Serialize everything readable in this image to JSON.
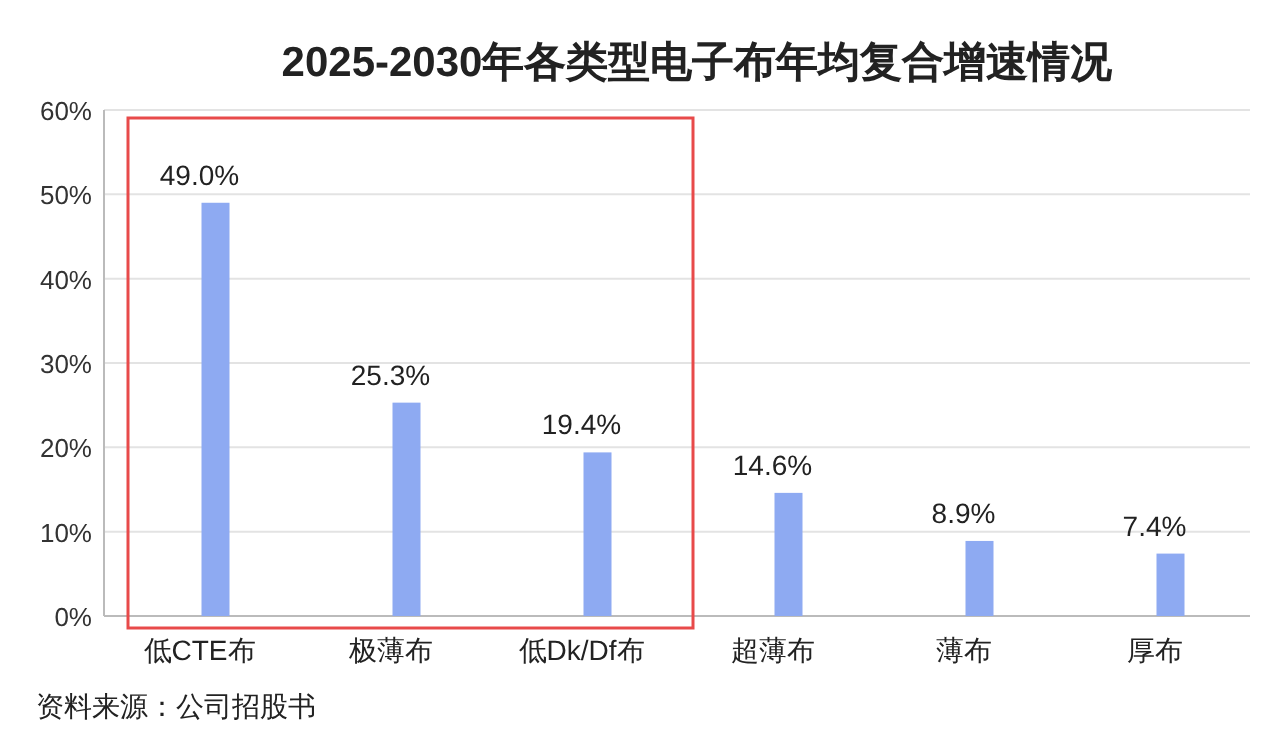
{
  "chart_data": {
    "type": "bar",
    "title": "2025-2030年各类型电子布年均复合增速情况",
    "categories": [
      "低CTE布",
      "极薄布",
      "低Dk/Df布",
      "超薄布",
      "薄布",
      "厚布"
    ],
    "values": [
      49.0,
      25.3,
      19.4,
      14.6,
      8.9,
      7.4
    ],
    "value_labels": [
      "49.0%",
      "25.3%",
      "19.4%",
      "14.6%",
      "8.9%",
      "7.4%"
    ],
    "color": "#8eaaf2",
    "ylim": [
      0,
      60
    ],
    "yticks": [
      {
        "value": 0,
        "label": "0%"
      },
      {
        "value": 10,
        "label": "10%"
      },
      {
        "value": 20,
        "label": "20%"
      },
      {
        "value": 30,
        "label": "30%"
      },
      {
        "value": 40,
        "label": "40%"
      },
      {
        "value": 50,
        "label": "50%"
      },
      {
        "value": 60,
        "label": "60%"
      }
    ],
    "grid": "y",
    "annotations": [
      "资料来源：公司招股书"
    ]
  }
}
